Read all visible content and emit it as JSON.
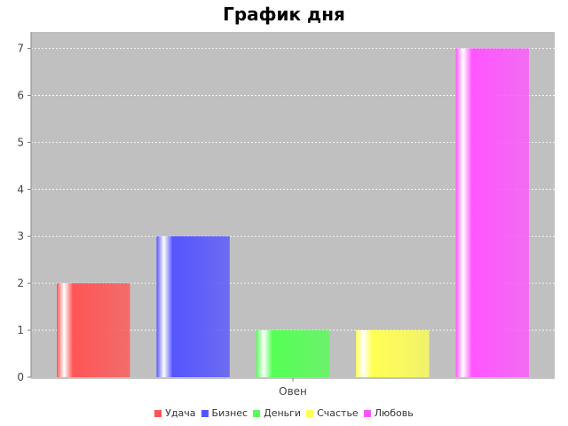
{
  "chart_data": {
    "type": "bar",
    "title": "График дня",
    "categories": [
      "Овен"
    ],
    "series": [
      {
        "name": "Удача",
        "values": [
          2
        ],
        "color": "#ff5555"
      },
      {
        "name": "Бизнес",
        "values": [
          3
        ],
        "color": "#5555ff"
      },
      {
        "name": "Деньги",
        "values": [
          1
        ],
        "color": "#55ff55"
      },
      {
        "name": "Счастье",
        "values": [
          1
        ],
        "color": "#ffff55"
      },
      {
        "name": "Любовь",
        "values": [
          7
        ],
        "color": "#ff55ff"
      }
    ],
    "xlabel": "",
    "ylabel": "",
    "ylim": [
      0,
      7.35
    ],
    "yticks": [
      0,
      1,
      2,
      3,
      4,
      5,
      6,
      7
    ],
    "grid": true,
    "legend": "bottom",
    "plot_background": "#c0c0c0"
  }
}
